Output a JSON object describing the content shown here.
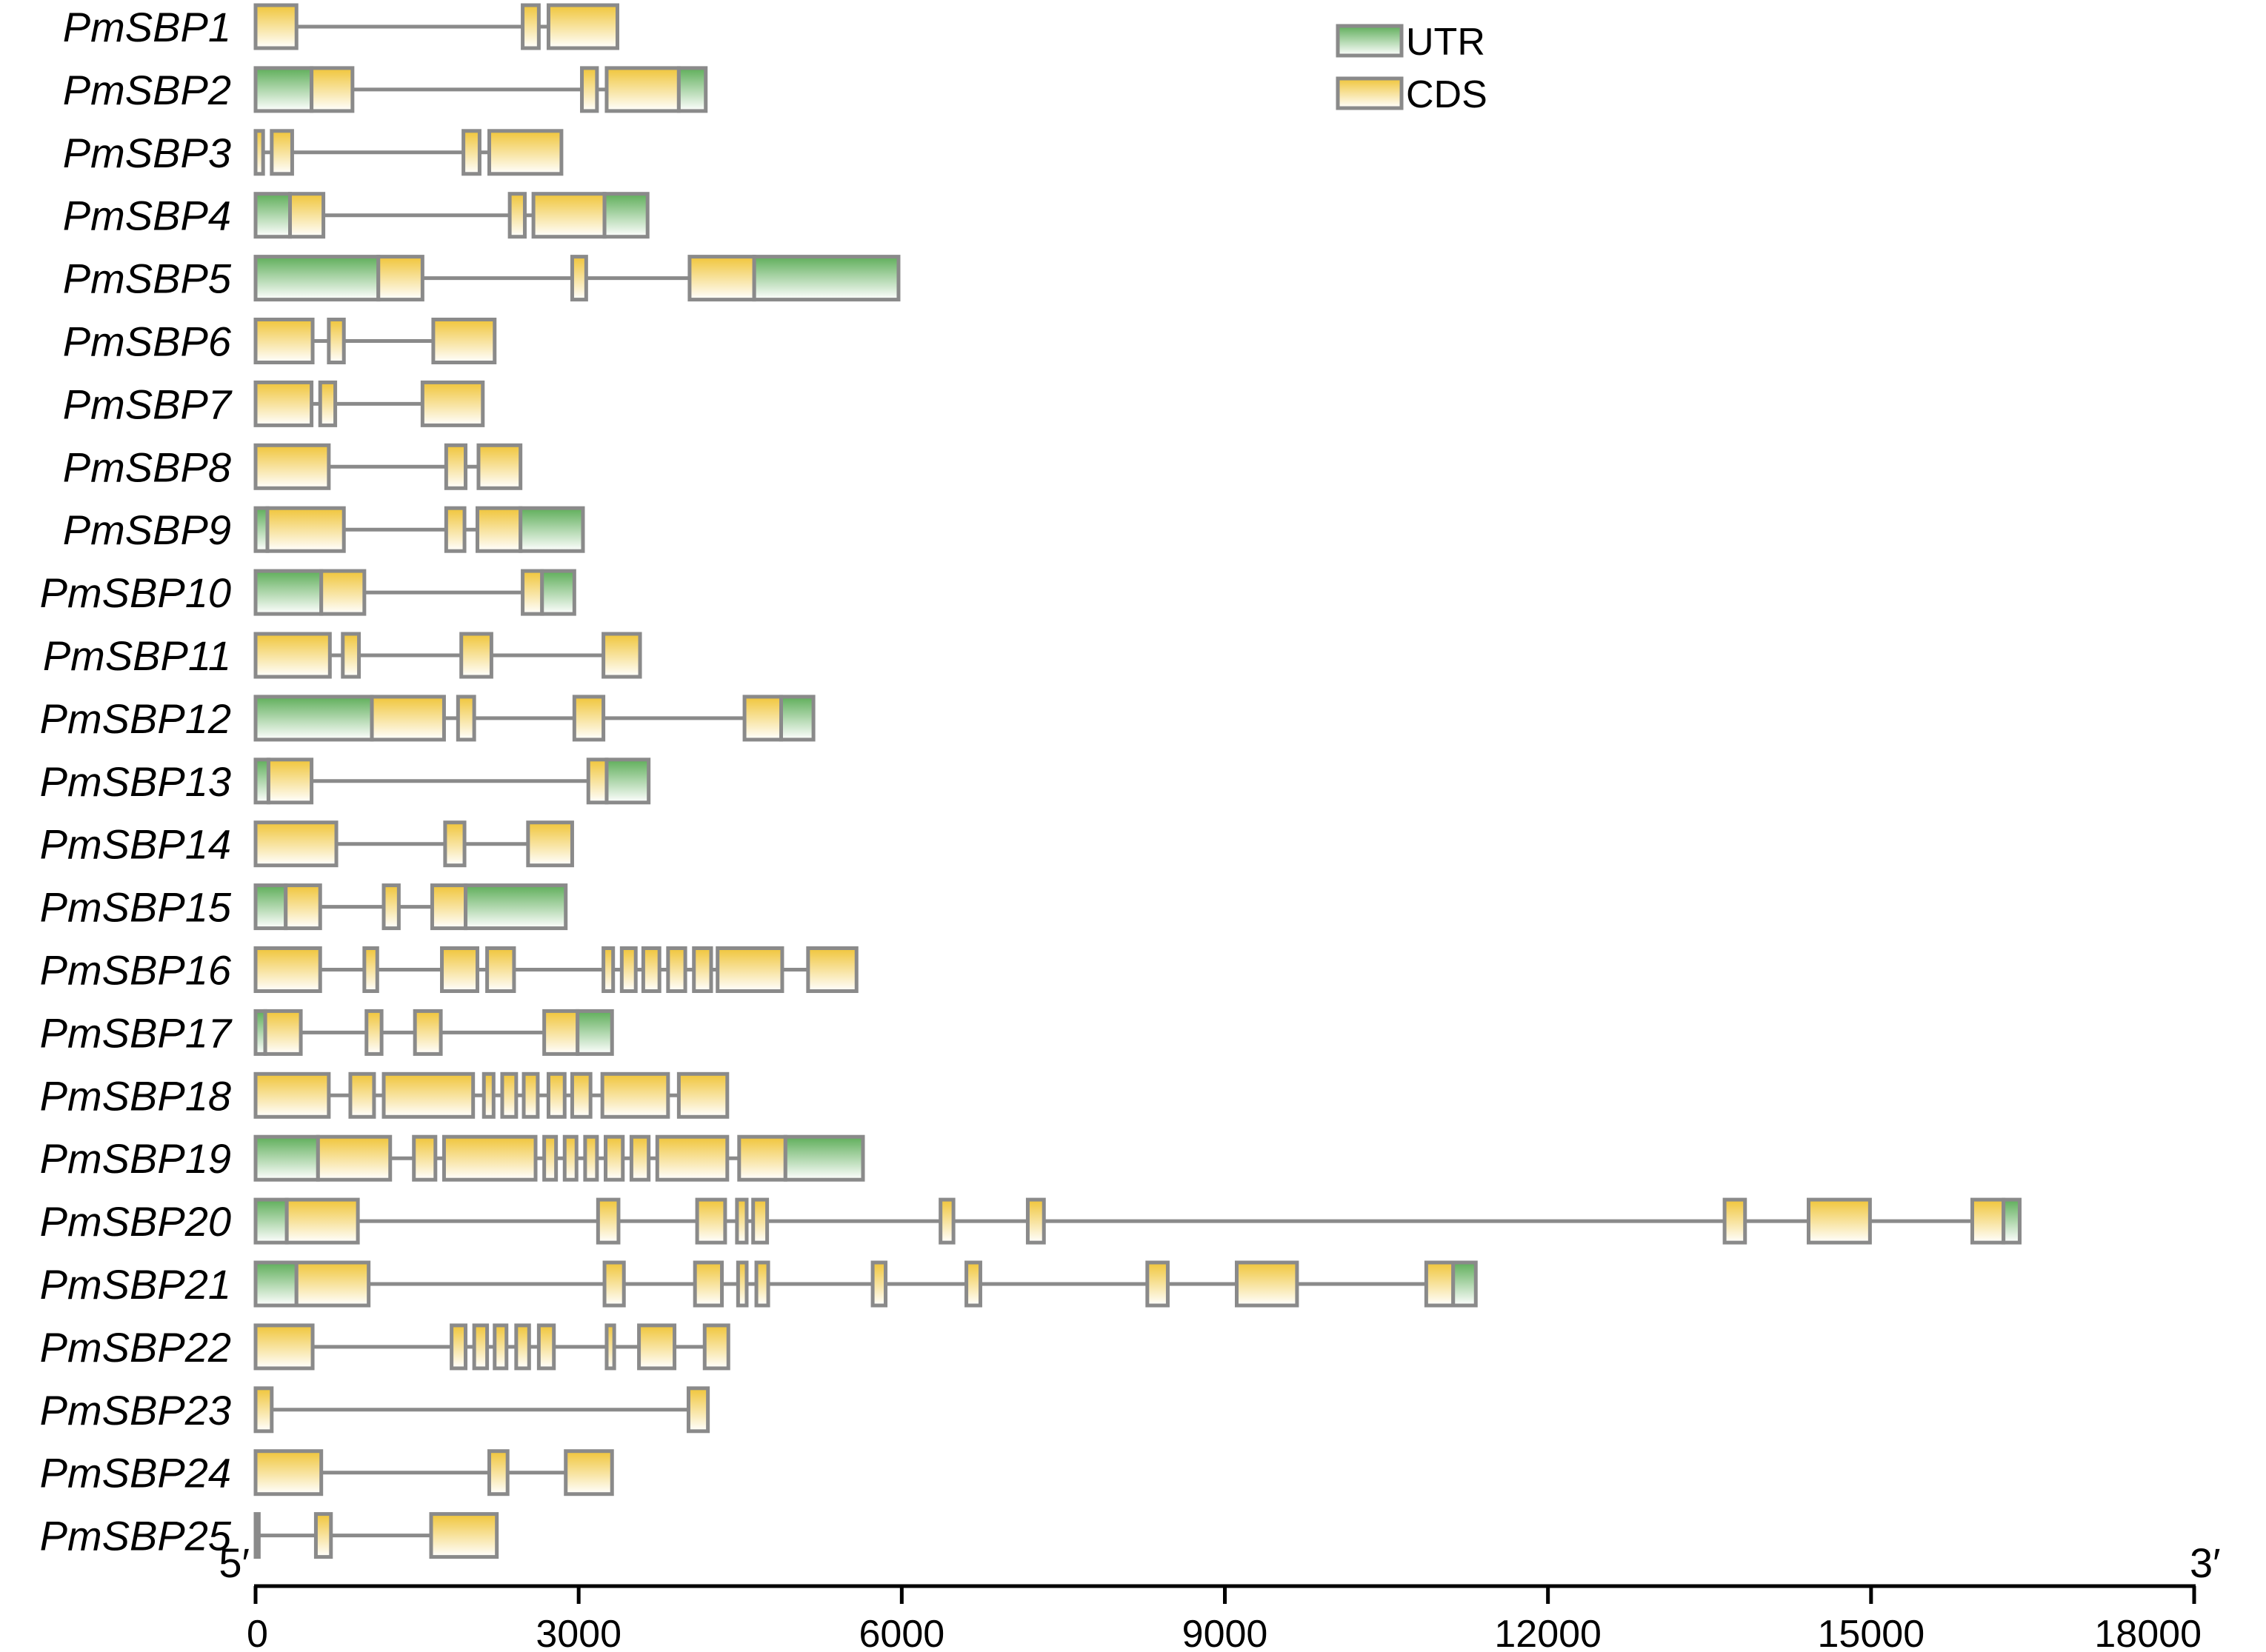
{
  "legend": [
    {
      "label": "UTR",
      "type": "utr"
    },
    {
      "label": "CDS",
      "type": "cds"
    }
  ],
  "colors": {
    "utr": "#5fae5a",
    "cds": "#f0c53a",
    "outline": "#8a8a8a",
    "intron": "#8a8a8a"
  },
  "chart_data": {
    "type": "gene-structure",
    "axis": {
      "min": 0,
      "max": 18000,
      "ticks": [
        0,
        3000,
        6000,
        9000,
        12000,
        15000,
        18000
      ],
      "tick_labels": [
        "0",
        "3000",
        "6000",
        "9000",
        "12000",
        "15000",
        "18000"
      ],
      "left_label": "5′",
      "right_label": "3′"
    },
    "genes": [
      {
        "name": "PmSBP1",
        "length": 3360,
        "segments": [
          [
            0,
            380,
            "cds"
          ],
          [
            2480,
            2630,
            "cds"
          ],
          [
            2720,
            3360,
            "cds"
          ]
        ]
      },
      {
        "name": "PmSBP2",
        "length": 4180,
        "segments": [
          [
            0,
            520,
            "utr"
          ],
          [
            520,
            900,
            "cds"
          ],
          [
            3030,
            3170,
            "cds"
          ],
          [
            3260,
            3930,
            "cds"
          ],
          [
            3930,
            4180,
            "utr"
          ]
        ]
      },
      {
        "name": "PmSBP3",
        "length": 2840,
        "segments": [
          [
            0,
            70,
            "cds"
          ],
          [
            150,
            340,
            "cds"
          ],
          [
            1930,
            2080,
            "cds"
          ],
          [
            2170,
            2840,
            "cds"
          ]
        ]
      },
      {
        "name": "PmSBP4",
        "length": 3640,
        "segments": [
          [
            0,
            320,
            "utr"
          ],
          [
            320,
            630,
            "cds"
          ],
          [
            2360,
            2500,
            "cds"
          ],
          [
            2580,
            3240,
            "cds"
          ],
          [
            3240,
            3640,
            "utr"
          ]
        ]
      },
      {
        "name": "PmSBP5",
        "length": 5970,
        "segments": [
          [
            0,
            1140,
            "utr"
          ],
          [
            1140,
            1550,
            "cds"
          ],
          [
            2940,
            3070,
            "cds"
          ],
          [
            4030,
            4630,
            "cds"
          ],
          [
            4630,
            5970,
            "utr"
          ]
        ]
      },
      {
        "name": "PmSBP6",
        "length": 2220,
        "segments": [
          [
            0,
            530,
            "cds"
          ],
          [
            680,
            820,
            "cds"
          ],
          [
            1650,
            2220,
            "cds"
          ]
        ]
      },
      {
        "name": "PmSBP7",
        "length": 2110,
        "segments": [
          [
            0,
            520,
            "cds"
          ],
          [
            600,
            740,
            "cds"
          ],
          [
            1550,
            2110,
            "cds"
          ]
        ]
      },
      {
        "name": "PmSBP8",
        "length": 2460,
        "segments": [
          [
            0,
            680,
            "cds"
          ],
          [
            1770,
            1950,
            "cds"
          ],
          [
            2070,
            2460,
            "cds"
          ]
        ]
      },
      {
        "name": "PmSBP9",
        "length": 3040,
        "segments": [
          [
            0,
            110,
            "utr"
          ],
          [
            110,
            820,
            "cds"
          ],
          [
            1770,
            1940,
            "cds"
          ],
          [
            2060,
            2460,
            "cds"
          ],
          [
            2460,
            3040,
            "utr"
          ]
        ]
      },
      {
        "name": "PmSBP10",
        "length": 2960,
        "segments": [
          [
            0,
            610,
            "utr"
          ],
          [
            610,
            1010,
            "cds"
          ],
          [
            2480,
            2660,
            "cds"
          ],
          [
            2660,
            2960,
            "utr"
          ]
        ]
      },
      {
        "name": "PmSBP11",
        "length": 3570,
        "segments": [
          [
            0,
            690,
            "cds"
          ],
          [
            810,
            960,
            "cds"
          ],
          [
            1910,
            2190,
            "cds"
          ],
          [
            3230,
            3570,
            "cds"
          ]
        ]
      },
      {
        "name": "PmSBP12",
        "length": 5180,
        "segments": [
          [
            0,
            1080,
            "utr"
          ],
          [
            1080,
            1750,
            "cds"
          ],
          [
            1880,
            2030,
            "cds"
          ],
          [
            2960,
            3230,
            "cds"
          ],
          [
            4540,
            4880,
            "cds"
          ],
          [
            4880,
            5180,
            "utr"
          ]
        ]
      },
      {
        "name": "PmSBP13",
        "length": 3650,
        "segments": [
          [
            0,
            120,
            "utr"
          ],
          [
            120,
            520,
            "cds"
          ],
          [
            3090,
            3260,
            "cds"
          ],
          [
            3260,
            3650,
            "utr"
          ]
        ]
      },
      {
        "name": "PmSBP14",
        "length": 2940,
        "segments": [
          [
            0,
            750,
            "cds"
          ],
          [
            1760,
            1940,
            "cds"
          ],
          [
            2530,
            2940,
            "cds"
          ]
        ]
      },
      {
        "name": "PmSBP15",
        "length": 2880,
        "segments": [
          [
            0,
            280,
            "utr"
          ],
          [
            280,
            600,
            "cds"
          ],
          [
            1190,
            1330,
            "cds"
          ],
          [
            1640,
            1950,
            "cds"
          ],
          [
            1950,
            2880,
            "utr"
          ]
        ]
      },
      {
        "name": "PmSBP16",
        "length": 5580,
        "segments": [
          [
            0,
            600,
            "cds"
          ],
          [
            1010,
            1130,
            "cds"
          ],
          [
            1730,
            2060,
            "cds"
          ],
          [
            2150,
            2400,
            "cds"
          ],
          [
            3230,
            3320,
            "cds"
          ],
          [
            3400,
            3530,
            "cds"
          ],
          [
            3600,
            3750,
            "cds"
          ],
          [
            3830,
            3990,
            "cds"
          ],
          [
            4070,
            4230,
            "cds"
          ],
          [
            4290,
            4890,
            "cds"
          ],
          [
            5130,
            5580,
            "cds"
          ]
        ]
      },
      {
        "name": "PmSBP17",
        "length": 3310,
        "segments": [
          [
            0,
            90,
            "utr"
          ],
          [
            90,
            420,
            "cds"
          ],
          [
            1030,
            1170,
            "cds"
          ],
          [
            1480,
            1720,
            "cds"
          ],
          [
            2680,
            2990,
            "cds"
          ],
          [
            2990,
            3310,
            "utr"
          ]
        ]
      },
      {
        "name": "PmSBP18",
        "length": 4380,
        "segments": [
          [
            0,
            680,
            "cds"
          ],
          [
            880,
            1100,
            "cds"
          ],
          [
            1190,
            2020,
            "cds"
          ],
          [
            2120,
            2210,
            "cds"
          ],
          [
            2290,
            2420,
            "cds"
          ],
          [
            2490,
            2620,
            "cds"
          ],
          [
            2720,
            2870,
            "cds"
          ],
          [
            2940,
            3110,
            "cds"
          ],
          [
            3220,
            3830,
            "cds"
          ],
          [
            3930,
            4380,
            "cds"
          ]
        ]
      },
      {
        "name": "PmSBP19",
        "length": 5640,
        "segments": [
          [
            0,
            580,
            "utr"
          ],
          [
            580,
            1250,
            "cds"
          ],
          [
            1470,
            1670,
            "cds"
          ],
          [
            1750,
            2600,
            "cds"
          ],
          [
            2680,
            2790,
            "cds"
          ],
          [
            2870,
            2980,
            "cds"
          ],
          [
            3060,
            3170,
            "cds"
          ],
          [
            3250,
            3410,
            "cds"
          ],
          [
            3490,
            3650,
            "cds"
          ],
          [
            3730,
            4380,
            "cds"
          ],
          [
            4490,
            4920,
            "cds"
          ],
          [
            4920,
            5640,
            "utr"
          ]
        ]
      },
      {
        "name": "PmSBP20",
        "length": 16380,
        "segments": [
          [
            0,
            290,
            "utr"
          ],
          [
            290,
            950,
            "cds"
          ],
          [
            3180,
            3370,
            "cds"
          ],
          [
            4100,
            4360,
            "cds"
          ],
          [
            4470,
            4560,
            "cds"
          ],
          [
            4620,
            4750,
            "cds"
          ],
          [
            6360,
            6480,
            "cds"
          ],
          [
            7170,
            7320,
            "cds"
          ],
          [
            13640,
            13830,
            "cds"
          ],
          [
            14420,
            14990,
            "cds"
          ],
          [
            15940,
            16230,
            "cds"
          ],
          [
            16230,
            16380,
            "utr"
          ]
        ]
      },
      {
        "name": "PmSBP21",
        "length": 11330,
        "segments": [
          [
            0,
            380,
            "utr"
          ],
          [
            380,
            1050,
            "cds"
          ],
          [
            3240,
            3420,
            "cds"
          ],
          [
            4080,
            4330,
            "cds"
          ],
          [
            4480,
            4560,
            "cds"
          ],
          [
            4650,
            4760,
            "cds"
          ],
          [
            5730,
            5850,
            "cds"
          ],
          [
            6600,
            6730,
            "cds"
          ],
          [
            8280,
            8470,
            "cds"
          ],
          [
            9110,
            9670,
            "cds"
          ],
          [
            10870,
            11120,
            "cds"
          ],
          [
            11120,
            11330,
            "utr"
          ]
        ]
      },
      {
        "name": "PmSBP22",
        "length": 4390,
        "segments": [
          [
            0,
            530,
            "cds"
          ],
          [
            1820,
            1950,
            "cds"
          ],
          [
            2030,
            2150,
            "cds"
          ],
          [
            2220,
            2330,
            "cds"
          ],
          [
            2420,
            2540,
            "cds"
          ],
          [
            2630,
            2770,
            "cds"
          ],
          [
            3260,
            3330,
            "cds"
          ],
          [
            3560,
            3890,
            "cds"
          ],
          [
            4170,
            4390,
            "cds"
          ]
        ]
      },
      {
        "name": "PmSBP23",
        "length": 4200,
        "segments": [
          [
            0,
            150,
            "cds"
          ],
          [
            4020,
            4200,
            "cds"
          ]
        ]
      },
      {
        "name": "PmSBP24",
        "length": 3310,
        "segments": [
          [
            0,
            610,
            "cds"
          ],
          [
            2170,
            2340,
            "cds"
          ],
          [
            2880,
            3310,
            "cds"
          ]
        ]
      },
      {
        "name": "PmSBP25",
        "length": 2240,
        "segments": [
          [
            0,
            30,
            "cds"
          ],
          [
            560,
            700,
            "cds"
          ],
          [
            1630,
            2240,
            "cds"
          ]
        ]
      }
    ]
  }
}
